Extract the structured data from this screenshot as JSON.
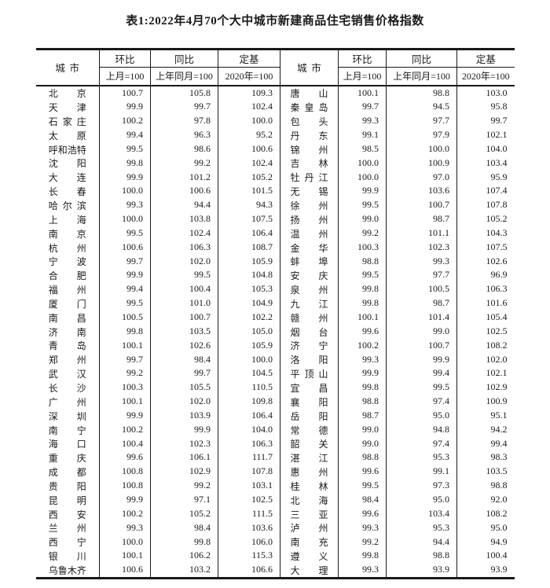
{
  "page": {
    "title": "表1:2022年4月70个大中城市新建商品住宅销售价格指数"
  },
  "colors": {
    "text": "#1a1a1a",
    "border": "#191919",
    "background": "#ffffff"
  },
  "table": {
    "column_headers": {
      "city": "城市",
      "mom": {
        "label": "环比",
        "base": "上月=100"
      },
      "yoy": {
        "label": "同比",
        "base": "上年同月=100"
      },
      "fixed_base": {
        "label": "定基",
        "base": "2020年=100"
      }
    },
    "left_rows": [
      {
        "city": "北京",
        "mom": "100.7",
        "yoy": "105.8",
        "fb": "109.3"
      },
      {
        "city": "天津",
        "mom": "99.9",
        "yoy": "99.7",
        "fb": "102.4"
      },
      {
        "city": "石家庄",
        "mom": "100.2",
        "yoy": "97.8",
        "fb": "100.0"
      },
      {
        "city": "太原",
        "mom": "99.4",
        "yoy": "96.3",
        "fb": "95.2"
      },
      {
        "city": "呼和浩特",
        "mom": "99.5",
        "yoy": "98.6",
        "fb": "100.6"
      },
      {
        "city": "沈阳",
        "mom": "99.8",
        "yoy": "99.2",
        "fb": "102.4"
      },
      {
        "city": "大连",
        "mom": "99.9",
        "yoy": "101.2",
        "fb": "105.2"
      },
      {
        "city": "长春",
        "mom": "100.0",
        "yoy": "100.6",
        "fb": "101.5"
      },
      {
        "city": "哈尔滨",
        "mom": "99.3",
        "yoy": "94.4",
        "fb": "94.3"
      },
      {
        "city": "上海",
        "mom": "100.0",
        "yoy": "103.8",
        "fb": "107.5"
      },
      {
        "city": "南京",
        "mom": "99.5",
        "yoy": "102.4",
        "fb": "106.4"
      },
      {
        "city": "杭州",
        "mom": "100.6",
        "yoy": "106.3",
        "fb": "108.7"
      },
      {
        "city": "宁波",
        "mom": "99.7",
        "yoy": "102.0",
        "fb": "105.9"
      },
      {
        "city": "合肥",
        "mom": "99.9",
        "yoy": "99.5",
        "fb": "104.8"
      },
      {
        "city": "福州",
        "mom": "99.4",
        "yoy": "100.4",
        "fb": "105.3"
      },
      {
        "city": "厦门",
        "mom": "99.5",
        "yoy": "101.0",
        "fb": "104.9"
      },
      {
        "city": "南昌",
        "mom": "100.5",
        "yoy": "100.7",
        "fb": "102.2"
      },
      {
        "city": "济南",
        "mom": "99.8",
        "yoy": "103.5",
        "fb": "105.0"
      },
      {
        "city": "青岛",
        "mom": "100.1",
        "yoy": "102.6",
        "fb": "105.9"
      },
      {
        "city": "郑州",
        "mom": "99.7",
        "yoy": "98.4",
        "fb": "100.0"
      },
      {
        "city": "武汉",
        "mom": "99.2",
        "yoy": "99.7",
        "fb": "104.5"
      },
      {
        "city": "长沙",
        "mom": "100.3",
        "yoy": "105.5",
        "fb": "110.5"
      },
      {
        "city": "广州",
        "mom": "100.1",
        "yoy": "102.0",
        "fb": "109.8"
      },
      {
        "city": "深圳",
        "mom": "99.9",
        "yoy": "103.9",
        "fb": "106.4"
      },
      {
        "city": "南宁",
        "mom": "100.2",
        "yoy": "99.9",
        "fb": "104.0"
      },
      {
        "city": "海口",
        "mom": "100.4",
        "yoy": "102.3",
        "fb": "106.3"
      },
      {
        "city": "重庆",
        "mom": "99.6",
        "yoy": "106.1",
        "fb": "111.7"
      },
      {
        "city": "成都",
        "mom": "100.8",
        "yoy": "102.9",
        "fb": "107.8"
      },
      {
        "city": "贵阳",
        "mom": "100.8",
        "yoy": "99.2",
        "fb": "103.1"
      },
      {
        "city": "昆明",
        "mom": "99.9",
        "yoy": "97.1",
        "fb": "102.5"
      },
      {
        "city": "西安",
        "mom": "100.2",
        "yoy": "105.2",
        "fb": "111.5"
      },
      {
        "city": "兰州",
        "mom": "99.3",
        "yoy": "98.4",
        "fb": "103.6"
      },
      {
        "city": "西宁",
        "mom": "100.0",
        "yoy": "99.8",
        "fb": "106.0"
      },
      {
        "city": "银川",
        "mom": "100.1",
        "yoy": "106.2",
        "fb": "115.3"
      },
      {
        "city": "乌鲁木齐",
        "mom": "100.6",
        "yoy": "103.2",
        "fb": "106.6"
      }
    ],
    "right_rows": [
      {
        "city": "唐山",
        "mom": "100.1",
        "yoy": "98.8",
        "fb": "103.0"
      },
      {
        "city": "秦皇岛",
        "mom": "99.7",
        "yoy": "94.5",
        "fb": "95.8"
      },
      {
        "city": "包头",
        "mom": "99.3",
        "yoy": "97.7",
        "fb": "99.7"
      },
      {
        "city": "丹东",
        "mom": "99.1",
        "yoy": "97.9",
        "fb": "102.1"
      },
      {
        "city": "锦州",
        "mom": "98.5",
        "yoy": "100.0",
        "fb": "104.0"
      },
      {
        "city": "吉林",
        "mom": "100.0",
        "yoy": "100.9",
        "fb": "103.4"
      },
      {
        "city": "牡丹江",
        "mom": "100.0",
        "yoy": "97.0",
        "fb": "95.9"
      },
      {
        "city": "无锡",
        "mom": "99.9",
        "yoy": "103.6",
        "fb": "107.4"
      },
      {
        "city": "徐州",
        "mom": "99.5",
        "yoy": "100.7",
        "fb": "107.8"
      },
      {
        "city": "扬州",
        "mom": "99.0",
        "yoy": "98.7",
        "fb": "105.2"
      },
      {
        "city": "温州",
        "mom": "99.2",
        "yoy": "101.1",
        "fb": "104.3"
      },
      {
        "city": "金华",
        "mom": "100.3",
        "yoy": "102.3",
        "fb": "107.5"
      },
      {
        "city": "蚌埠",
        "mom": "98.8",
        "yoy": "99.3",
        "fb": "102.6"
      },
      {
        "city": "安庆",
        "mom": "99.5",
        "yoy": "97.7",
        "fb": "96.9"
      },
      {
        "city": "泉州",
        "mom": "99.8",
        "yoy": "100.5",
        "fb": "106.3"
      },
      {
        "city": "九江",
        "mom": "99.8",
        "yoy": "98.7",
        "fb": "101.6"
      },
      {
        "city": "赣州",
        "mom": "100.1",
        "yoy": "101.4",
        "fb": "105.4"
      },
      {
        "city": "烟台",
        "mom": "99.6",
        "yoy": "99.0",
        "fb": "102.5"
      },
      {
        "city": "济宁",
        "mom": "100.2",
        "yoy": "100.7",
        "fb": "108.2"
      },
      {
        "city": "洛阳",
        "mom": "99.3",
        "yoy": "99.9",
        "fb": "102.0"
      },
      {
        "city": "平顶山",
        "mom": "99.9",
        "yoy": "99.4",
        "fb": "102.1"
      },
      {
        "city": "宜昌",
        "mom": "99.8",
        "yoy": "99.5",
        "fb": "102.9"
      },
      {
        "city": "襄阳",
        "mom": "98.8",
        "yoy": "97.4",
        "fb": "100.9"
      },
      {
        "city": "岳阳",
        "mom": "98.7",
        "yoy": "95.0",
        "fb": "95.1"
      },
      {
        "city": "常德",
        "mom": "99.0",
        "yoy": "94.8",
        "fb": "94.2"
      },
      {
        "city": "韶关",
        "mom": "99.0",
        "yoy": "97.4",
        "fb": "99.4"
      },
      {
        "city": "湛江",
        "mom": "98.8",
        "yoy": "95.3",
        "fb": "98.3"
      },
      {
        "city": "惠州",
        "mom": "99.6",
        "yoy": "99.1",
        "fb": "103.5"
      },
      {
        "city": "桂林",
        "mom": "99.5",
        "yoy": "97.3",
        "fb": "98.8"
      },
      {
        "city": "北海",
        "mom": "98.4",
        "yoy": "95.0",
        "fb": "92.0"
      },
      {
        "city": "三亚",
        "mom": "99.6",
        "yoy": "103.4",
        "fb": "108.2"
      },
      {
        "city": "泸州",
        "mom": "99.3",
        "yoy": "95.3",
        "fb": "95.0"
      },
      {
        "city": "南充",
        "mom": "99.2",
        "yoy": "94.4",
        "fb": "94.9"
      },
      {
        "city": "遵义",
        "mom": "99.8",
        "yoy": "98.8",
        "fb": "100.4"
      },
      {
        "city": "大理",
        "mom": "99.3",
        "yoy": "93.9",
        "fb": "93.9"
      }
    ]
  }
}
